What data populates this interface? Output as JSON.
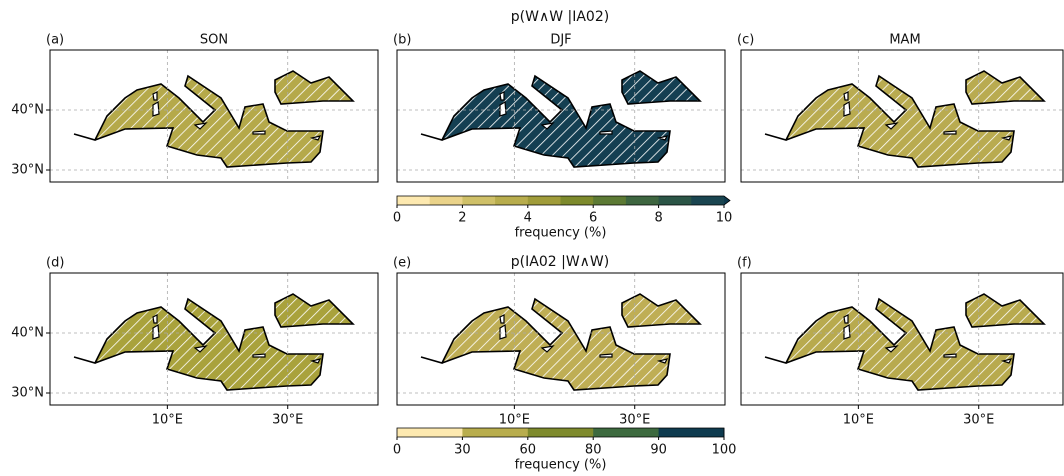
{
  "titles": [
    "p(W∧W |IA02)",
    "p(IA02 |W∧W)"
  ],
  "panels": [
    {
      "label": "(a)",
      "title": "SON",
      "color": "#b5a94a"
    },
    {
      "label": "(b)",
      "title": "DJF",
      "color": "#143f52"
    },
    {
      "label": "(c)",
      "title": "MAM",
      "color": "#b9ab50"
    },
    {
      "label": "(d)",
      "color": "#a9a23c"
    },
    {
      "label": "(e)",
      "color": "#bfae55"
    },
    {
      "label": "(f)",
      "color": "#b8aa4e"
    }
  ],
  "xlim": [
    -9.5,
    45
  ],
  "ylim": [
    28,
    50
  ],
  "xticks": [
    {
      "value": 10,
      "label": "10°E"
    },
    {
      "value": 30,
      "label": "30°E"
    }
  ],
  "yticks": [
    {
      "value": 30,
      "label": "30°N"
    },
    {
      "value": 40,
      "label": "40°N"
    }
  ],
  "grid": true,
  "colorbars": [
    {
      "label": "frequency (%)",
      "boundaries": [
        0,
        1,
        2,
        3,
        4,
        5,
        6,
        7,
        8,
        9,
        10
      ],
      "colors": [
        "#fde9b0",
        "#ead38a",
        "#cfc068",
        "#b8ad4d",
        "#a09c3a",
        "#7d8a2c",
        "#5c7a34",
        "#3e6640",
        "#2b5546",
        "#1a4550"
      ],
      "extend_color": "#0f3a4d",
      "ticks": [
        0,
        2,
        4,
        6,
        8,
        10
      ]
    },
    {
      "label": "frequency (%)",
      "boundaries": [
        0,
        30,
        60,
        80,
        90,
        100
      ],
      "colors": [
        "#fde9b0",
        "#b8ad4d",
        "#7e8a2c",
        "#3d6a3f",
        "#0e3b4f"
      ],
      "ticks": [
        0,
        30,
        60,
        80,
        90,
        100
      ]
    }
  ]
}
